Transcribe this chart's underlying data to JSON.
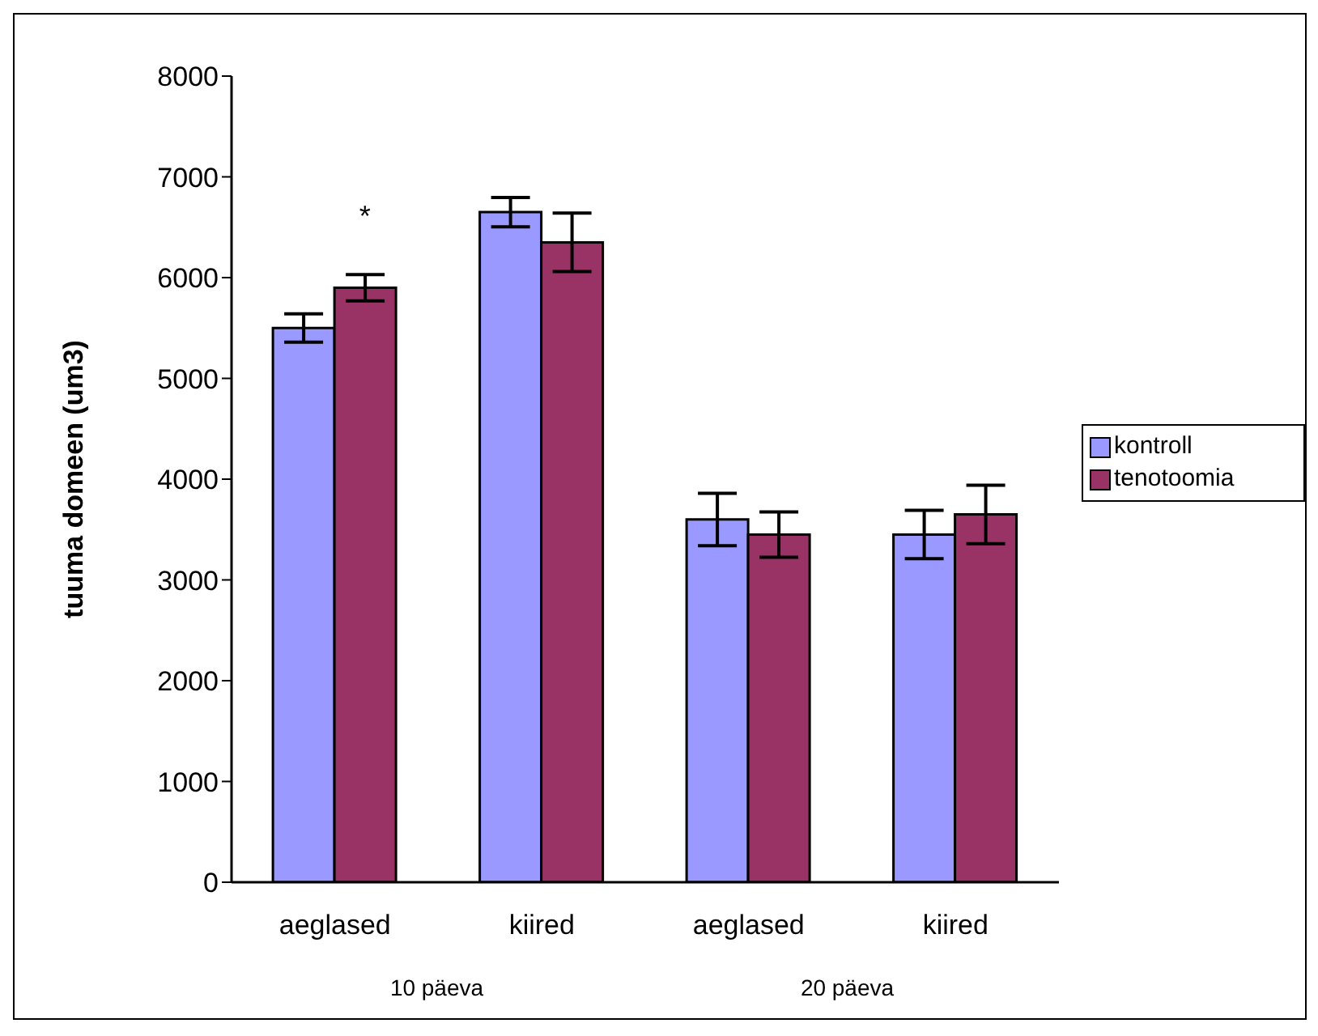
{
  "chart_data": {
    "type": "bar",
    "ylabel": "tuuma domeen (um3)",
    "categories": [
      "aeglased",
      "kiired",
      "aeglased",
      "kiired"
    ],
    "series": [
      {
        "name": "kontroll",
        "color": "#9999ff",
        "values": [
          5500,
          6650,
          3600,
          3450
        ],
        "errors": [
          140,
          145,
          260,
          240
        ]
      },
      {
        "name": "tenotoomia",
        "color": "#993366",
        "values": [
          5900,
          6350,
          3450,
          3650
        ],
        "errors": [
          130,
          290,
          225,
          290
        ]
      }
    ],
    "ylim": [
      0,
      8000
    ],
    "yticks": [
      0,
      1000,
      2000,
      3000,
      4000,
      5000,
      6000,
      7000,
      8000
    ],
    "grid": false,
    "legend": "right",
    "annotations": [
      "*",
      "10 päeva",
      "20 päeva"
    ]
  }
}
